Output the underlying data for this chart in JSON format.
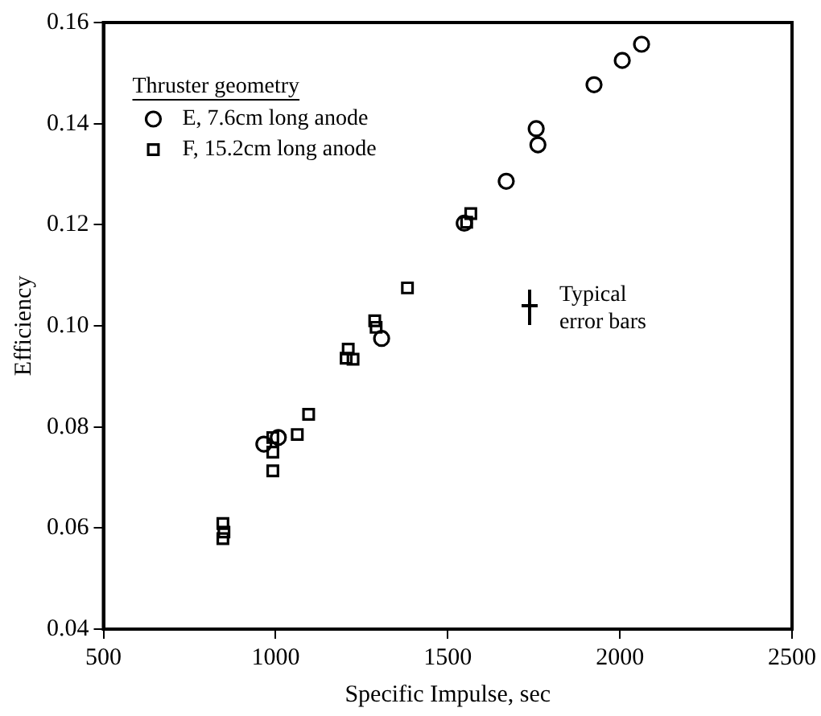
{
  "chart_data": {
    "type": "scatter",
    "xlabel": "Specific Impulse, sec",
    "ylabel": "Efficiency",
    "legend_title": "Thruster geometry",
    "legend": "top left",
    "grid": false,
    "xlim": [
      500,
      2500
    ],
    "xticks": [
      500,
      1000,
      1500,
      2000,
      2500
    ],
    "ylim": [
      0.04,
      0.16
    ],
    "yticks": [
      {
        "value": 0.04,
        "label": "0.04"
      },
      {
        "value": 0.06,
        "label": "0.06"
      },
      {
        "value": 0.08,
        "label": "0.08"
      },
      {
        "value": 0.1,
        "label": "0.10"
      },
      {
        "value": 0.12,
        "label": "0.12"
      },
      {
        "value": 0.14,
        "label": "0.14"
      },
      {
        "value": 0.16,
        "label": "0.16"
      }
    ],
    "series": [
      {
        "name": "E, 7.6cm long anode",
        "color": "#000000",
        "marker": "circle",
        "x": [
          2063,
          2007,
          1925,
          1757,
          1762,
          1670,
          1548,
          1308,
          1008,
          966
        ],
        "values": [
          0.1557,
          0.1525,
          0.1477,
          0.139,
          0.1358,
          0.1286,
          0.1203,
          0.0975,
          0.0779,
          0.0766
        ]
      },
      {
        "name": "F, 15.2cm long anode",
        "color": "#000000",
        "marker": "square",
        "x": [
          1567,
          1555,
          1383,
          1288,
          1292,
          1211,
          1205,
          1225,
          1096,
          1063,
          992,
          992,
          992,
          847,
          850,
          847
        ],
        "values": [
          0.1222,
          0.1205,
          0.1075,
          0.101,
          0.0997,
          0.0954,
          0.0936,
          0.0934,
          0.0825,
          0.0785,
          0.0779,
          0.075,
          0.0713,
          0.0609,
          0.0592,
          0.0579
        ]
      }
    ],
    "annotations": [
      "Typical error bars"
    ]
  }
}
